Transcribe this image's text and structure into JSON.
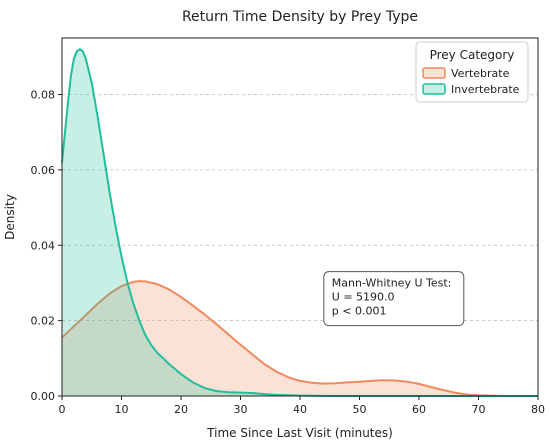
{
  "chart_data": {
    "type": "area",
    "title": "Return Time Density by Prey Type",
    "xlabel": "Time Since Last Visit (minutes)",
    "ylabel": "Density",
    "xlim": [
      0,
      80
    ],
    "ylim": [
      0,
      0.095
    ],
    "x_ticks": [
      "0",
      "10",
      "20",
      "30",
      "40",
      "50",
      "60",
      "70",
      "80"
    ],
    "y_ticks": [
      "0.00",
      "0.02",
      "0.04",
      "0.06",
      "0.08"
    ],
    "grid": "horizontal dashed",
    "legend": {
      "title": "Prey Category",
      "placement": "top-right"
    },
    "series": [
      {
        "name": "Vertebrate",
        "color": "#f08a5d",
        "points": [
          [
            0,
            0.0155
          ],
          [
            2,
            0.0185
          ],
          [
            4,
            0.0215
          ],
          [
            6,
            0.0245
          ],
          [
            8,
            0.0272
          ],
          [
            10,
            0.0292
          ],
          [
            12,
            0.0303
          ],
          [
            13,
            0.0305
          ],
          [
            14,
            0.0304
          ],
          [
            16,
            0.0297
          ],
          [
            18,
            0.0283
          ],
          [
            20,
            0.0263
          ],
          [
            22,
            0.024
          ],
          [
            24,
            0.0216
          ],
          [
            26,
            0.019
          ],
          [
            28,
            0.0163
          ],
          [
            30,
            0.0136
          ],
          [
            32,
            0.011
          ],
          [
            34,
            0.0085
          ],
          [
            36,
            0.0065
          ],
          [
            38,
            0.005
          ],
          [
            40,
            0.004
          ],
          [
            42,
            0.0035
          ],
          [
            44,
            0.0033
          ],
          [
            46,
            0.0034
          ],
          [
            48,
            0.0036
          ],
          [
            50,
            0.0038
          ],
          [
            52,
            0.004
          ],
          [
            54,
            0.0042
          ],
          [
            56,
            0.0041
          ],
          [
            58,
            0.0038
          ],
          [
            60,
            0.0032
          ],
          [
            62,
            0.0024
          ],
          [
            64,
            0.0016
          ],
          [
            66,
            0.0009
          ],
          [
            68,
            0.0004
          ],
          [
            70,
            0.0002
          ],
          [
            72,
            0.0001
          ],
          [
            75,
            0.0
          ],
          [
            80,
            0.0
          ]
        ]
      },
      {
        "name": "Invertebrate",
        "color": "#1fbf9c",
        "points": [
          [
            0,
            0.062
          ],
          [
            0.5,
            0.07
          ],
          [
            1,
            0.078
          ],
          [
            1.5,
            0.085
          ],
          [
            2,
            0.0895
          ],
          [
            2.5,
            0.0915
          ],
          [
            3,
            0.092
          ],
          [
            3.5,
            0.0915
          ],
          [
            4,
            0.0895
          ],
          [
            5,
            0.083
          ],
          [
            6,
            0.074
          ],
          [
            7,
            0.064
          ],
          [
            8,
            0.054
          ],
          [
            9,
            0.045
          ],
          [
            10,
            0.037
          ],
          [
            11,
            0.03
          ],
          [
            12,
            0.0245
          ],
          [
            13,
            0.02
          ],
          [
            14,
            0.0162
          ],
          [
            15,
            0.0135
          ],
          [
            16,
            0.0115
          ],
          [
            18,
            0.0085
          ],
          [
            20,
            0.0058
          ],
          [
            22,
            0.0036
          ],
          [
            24,
            0.0021
          ],
          [
            26,
            0.0013
          ],
          [
            28,
            0.001
          ],
          [
            30,
            0.0009
          ],
          [
            32,
            0.0008
          ],
          [
            34,
            0.0005
          ],
          [
            36,
            0.0003
          ],
          [
            38,
            0.0002
          ],
          [
            40,
            0.0001
          ],
          [
            45,
            0.0
          ],
          [
            50,
            0.0
          ],
          [
            55,
            0.0
          ],
          [
            60,
            0.0
          ],
          [
            65,
            0.0
          ],
          [
            70,
            0.0
          ],
          [
            75,
            0.0
          ],
          [
            80,
            0.0
          ]
        ]
      }
    ],
    "annotations": [
      {
        "lines": [
          "Mann-Whitney U Test:",
          "U = 5190.0",
          "p < 0.001"
        ],
        "x": 44,
        "y": 0.033
      }
    ]
  }
}
